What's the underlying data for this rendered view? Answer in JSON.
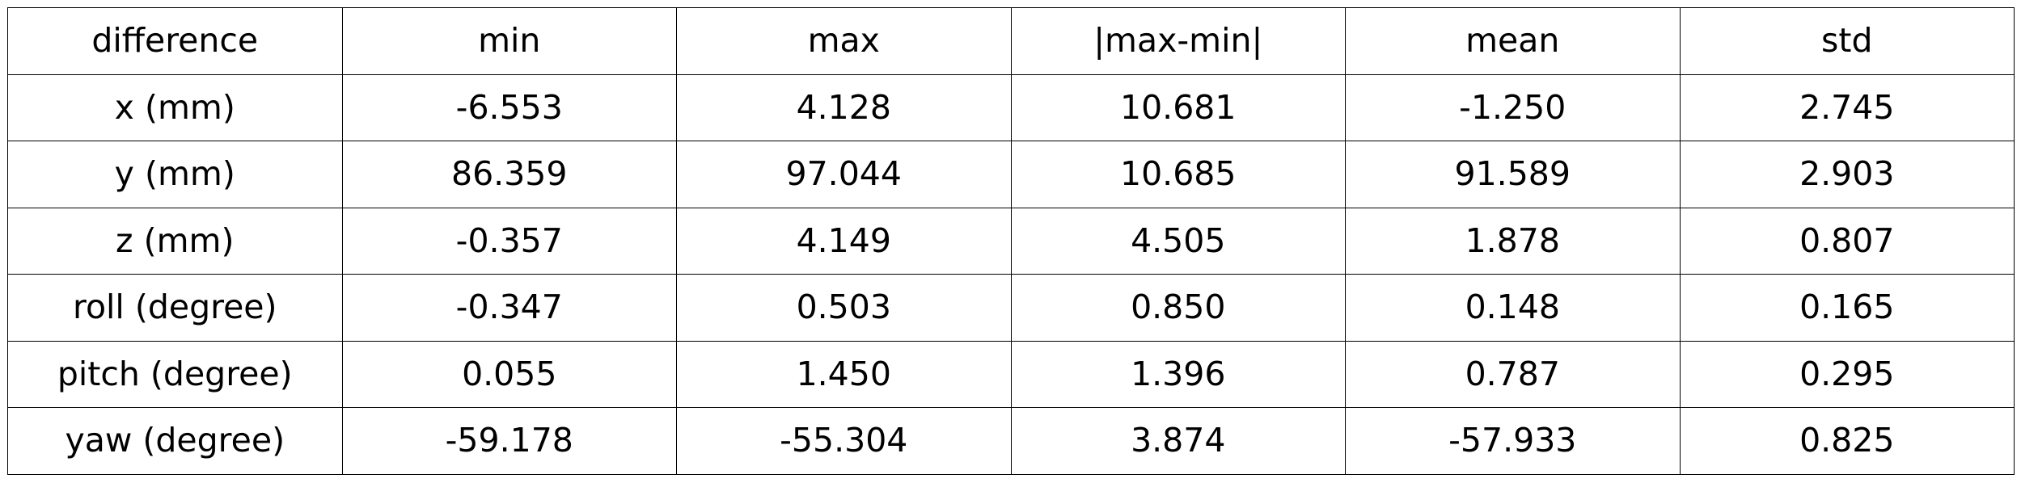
{
  "chart_data": {
    "type": "table",
    "columns": [
      "difference",
      "min",
      "max",
      "|max-min|",
      "mean",
      "std"
    ],
    "rows": [
      [
        "x (mm)",
        "-6.553",
        "4.128",
        "10.681",
        "-1.250",
        "2.745"
      ],
      [
        "y (mm)",
        "86.359",
        "97.044",
        "10.685",
        "91.589",
        "2.903"
      ],
      [
        "z (mm)",
        "-0.357",
        "4.149",
        "4.505",
        "1.878",
        "0.807"
      ],
      [
        "roll (degree)",
        "-0.347",
        "0.503",
        "0.850",
        "0.148",
        "0.165"
      ],
      [
        "pitch (degree)",
        "0.055",
        "1.450",
        "1.396",
        "0.787",
        "0.295"
      ],
      [
        "yaw (degree)",
        "-59.178",
        "-55.304",
        "3.874",
        "-57.933",
        "0.825"
      ]
    ]
  }
}
